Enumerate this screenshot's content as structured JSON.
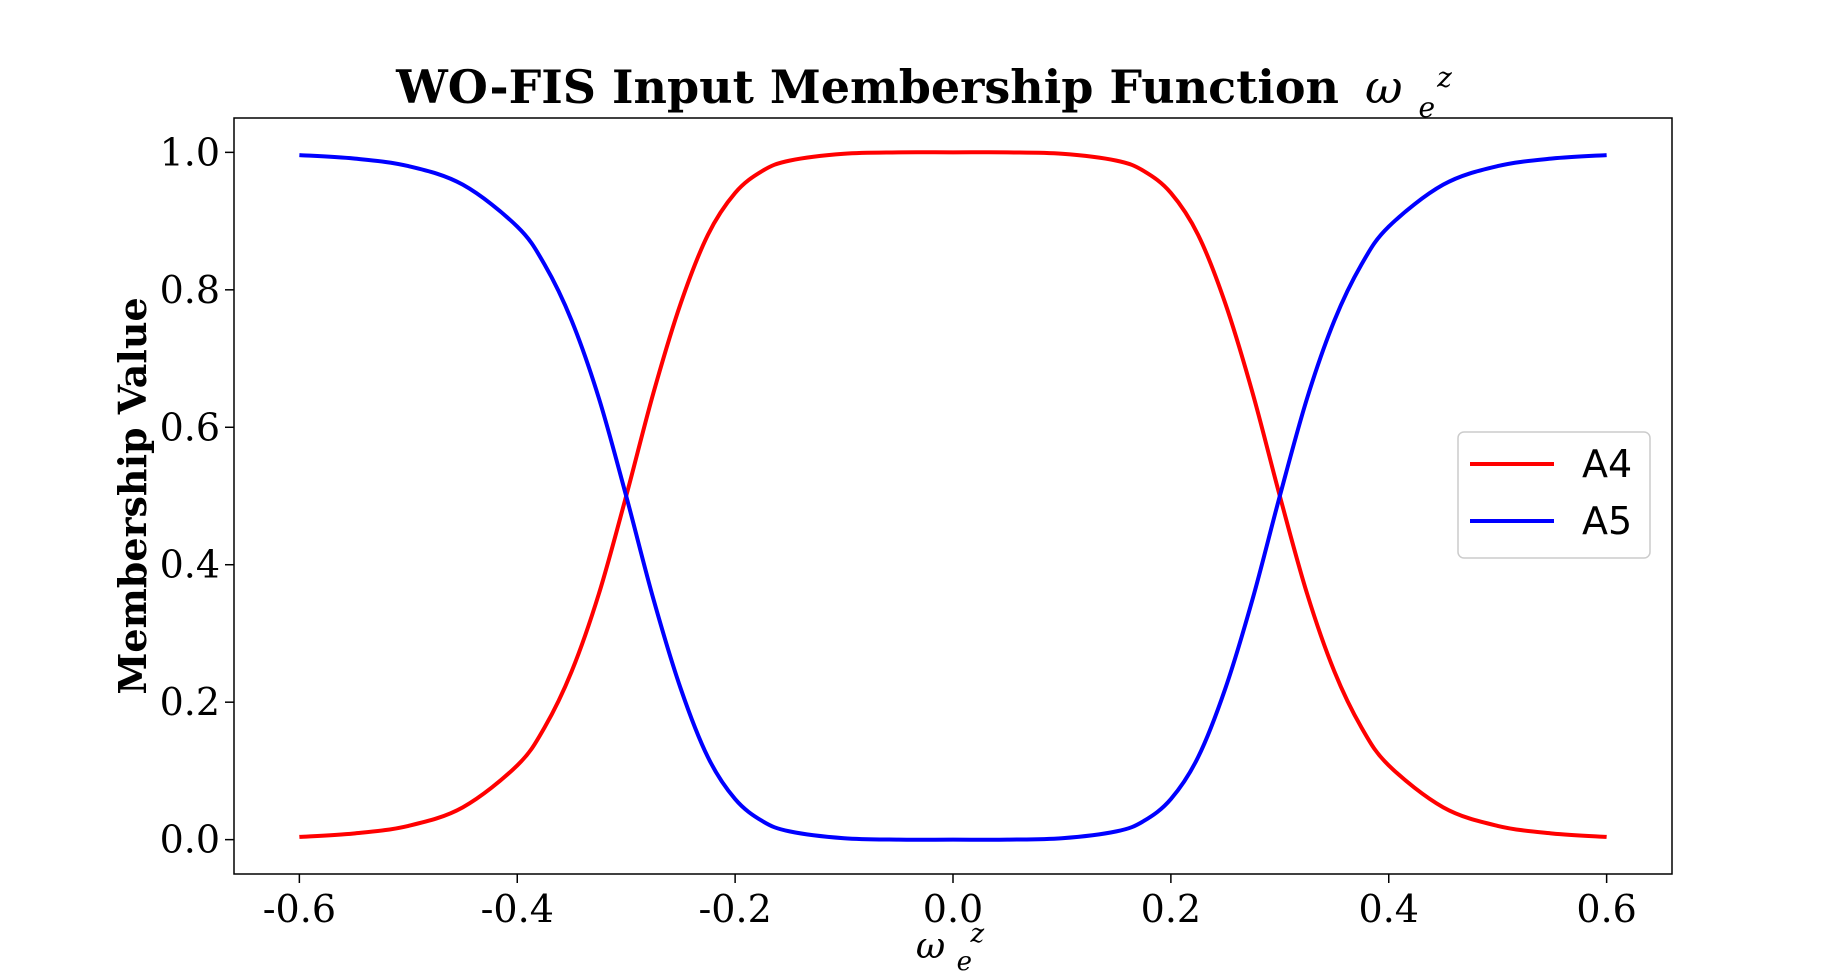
{
  "chart_data": {
    "type": "line",
    "title": "WO-FIS Input Membership Function",
    "title_symbol": {
      "base": "ω",
      "sub": "e",
      "sup": "z"
    },
    "xlabel_symbol": {
      "base": "ω",
      "sub": "e",
      "sup": "z"
    },
    "ylabel": "Membership Value",
    "xlim": [
      -0.66,
      0.66
    ],
    "ylim": [
      -0.05,
      1.05
    ],
    "x_ticks": [
      -0.6,
      -0.4,
      -0.2,
      0.0,
      0.2,
      0.4,
      0.6
    ],
    "x_tick_labels": [
      "-0.6",
      "-0.4",
      "-0.2",
      "0.0",
      "0.2",
      "0.4",
      "0.6"
    ],
    "y_ticks": [
      0.0,
      0.2,
      0.4,
      0.6,
      0.8,
      1.0
    ],
    "y_tick_labels": [
      "0.0",
      "0.2",
      "0.4",
      "0.6",
      "0.8",
      "1.0"
    ],
    "grid": false,
    "legend_position": "center-right",
    "x": [
      -0.6,
      -0.55,
      -0.5,
      -0.45,
      -0.4,
      -0.375,
      -0.35,
      -0.325,
      -0.3,
      -0.275,
      -0.25,
      -0.225,
      -0.2,
      -0.175,
      -0.15,
      -0.1,
      -0.05,
      0.0,
      0.05,
      0.1,
      0.15,
      0.175,
      0.2,
      0.225,
      0.25,
      0.275,
      0.3,
      0.325,
      0.35,
      0.375,
      0.4,
      0.45,
      0.5,
      0.55,
      0.6
    ],
    "series": [
      {
        "name": "A4",
        "color": "#ff0000",
        "values": [
          0.004,
          0.009,
          0.02,
          0.047,
          0.108,
          0.163,
          0.245,
          0.358,
          0.5,
          0.65,
          0.78,
          0.88,
          0.941,
          0.973,
          0.988,
          0.998,
          1.0,
          1.0,
          1.0,
          0.998,
          0.988,
          0.973,
          0.941,
          0.88,
          0.78,
          0.65,
          0.5,
          0.358,
          0.245,
          0.163,
          0.108,
          0.047,
          0.02,
          0.009,
          0.004
        ]
      },
      {
        "name": "A5",
        "color": "#0000ff",
        "values": [
          0.996,
          0.991,
          0.98,
          0.953,
          0.892,
          0.837,
          0.755,
          0.642,
          0.5,
          0.35,
          0.22,
          0.12,
          0.059,
          0.027,
          0.012,
          0.002,
          0.0,
          0.0,
          0.0,
          0.002,
          0.012,
          0.027,
          0.059,
          0.12,
          0.22,
          0.35,
          0.5,
          0.642,
          0.755,
          0.837,
          0.892,
          0.953,
          0.98,
          0.991,
          0.996
        ]
      }
    ]
  }
}
